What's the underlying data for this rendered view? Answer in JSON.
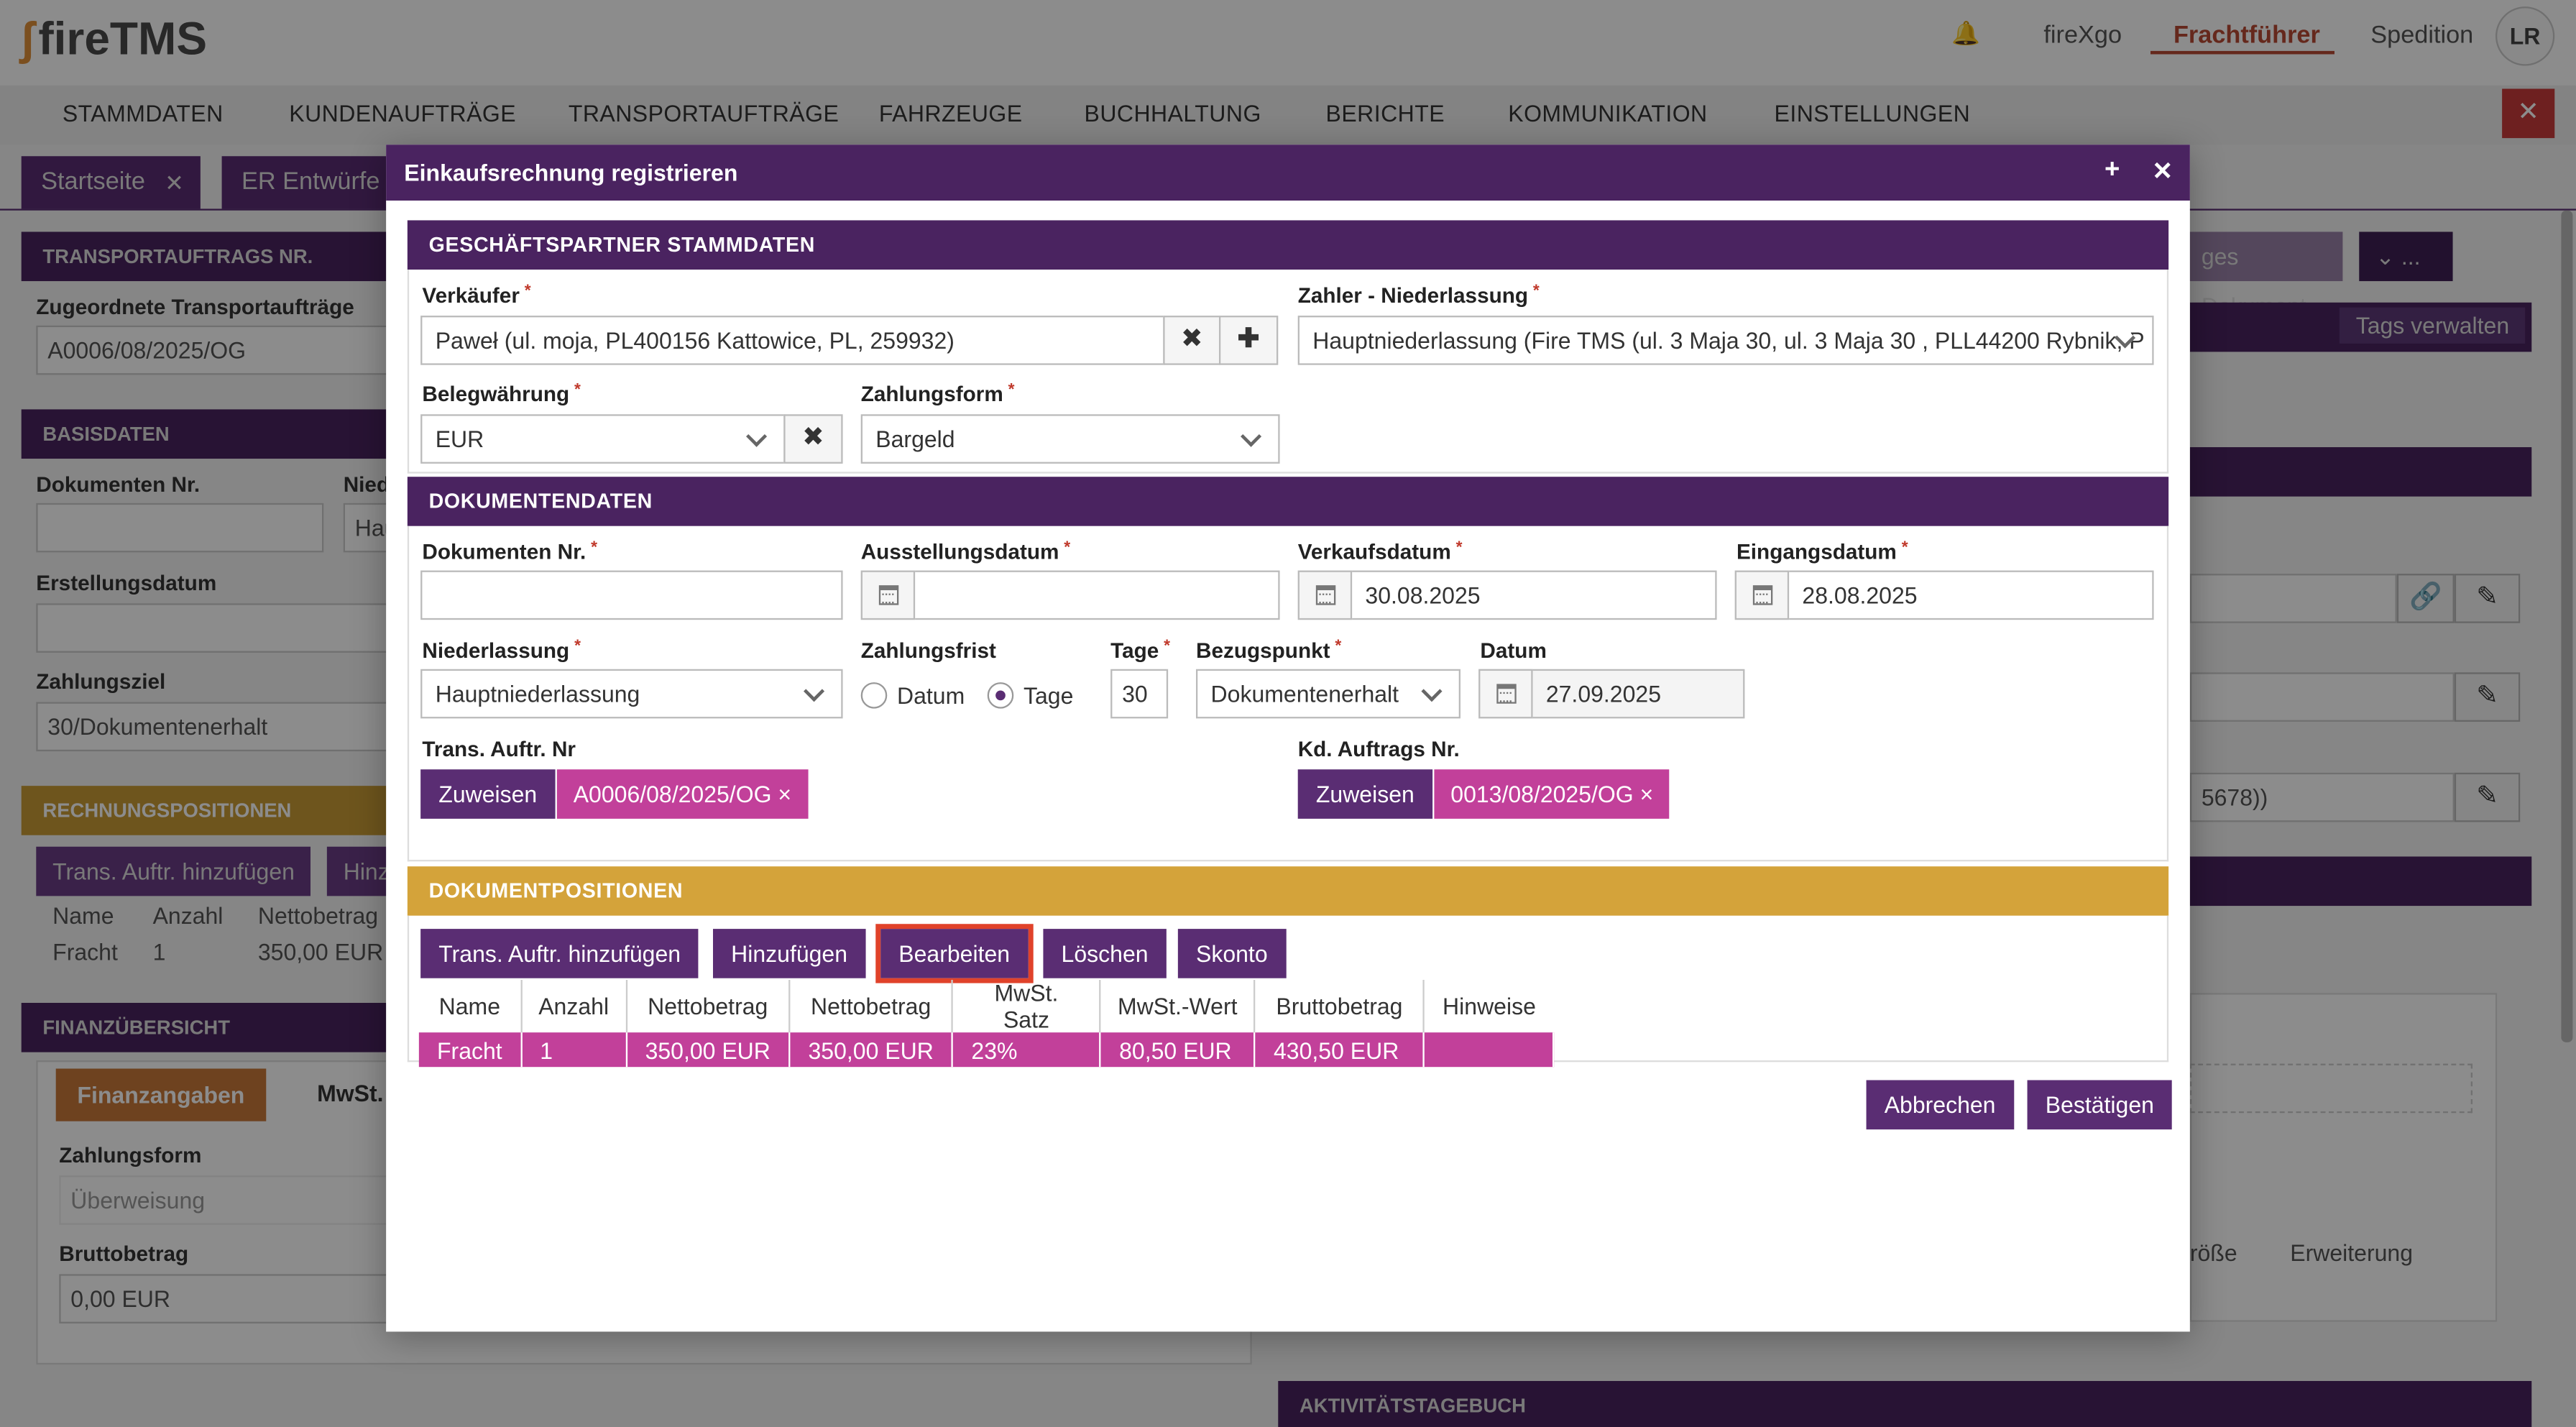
{
  "app": {
    "logo": "fireTMS",
    "top_links": [
      "fireXgo",
      "Frachtführer",
      "Spedition"
    ],
    "user_initials": "LR",
    "nav": [
      "STAMMDATEN",
      "KUNDENAUFTRÄGE",
      "TRANSPORTAUFTRÄGE",
      "FAHRZEUGE",
      "BUCHHALTUNG",
      "BERICHTE",
      "KOMMUNIKATION",
      "EINSTELLUNGEN"
    ],
    "tabs": [
      "Startseite",
      "ER Entwürfe"
    ]
  },
  "background": {
    "transportauftrags_nr": "TRANSPORTAUFTRAGS NR.",
    "zugeordnete_label": "Zugeordnete Transportaufträge",
    "zugeordnete_value": "A0006/08/2025/OG",
    "basisdaten": "BASISDATEN",
    "dokumenten_nr": "Dokumenten Nr.",
    "nied": "Nied",
    "hau": "Hau",
    "erstellungsdatum": "Erstellungsdatum",
    "zahlungsziel": "Zahlungsziel",
    "zahlungsziel_value": "30/Dokumentenerhalt",
    "rechnungspositionen": "RECHNUNGSPOSITIONEN",
    "btn_trans": "Trans. Auftr. hinzufügen",
    "btn_hinz": "Hinz",
    "col_name": "Name",
    "col_anzahl": "Anzahl",
    "col_netto": "Nettobetrag",
    "row_name": "Fracht",
    "row_anzahl": "1",
    "row_netto": "350,00 EUR",
    "finanzuebersicht": "FINANZÜBERSICHT",
    "tab_finanzangaben": "Finanzangaben",
    "tab_mwst": "MwSt.",
    "zahlungsform": "Zahlungsform",
    "zahlungsform_value": "Überweisung",
    "bruttobetrag": "Bruttobetrag",
    "bruttobetrag_value": "0,00 EUR",
    "right_doc_btn": "ges Dokument",
    "right_more": "...",
    "tags_verwalten": "Tags verwalten",
    "right_partial": "5678))",
    "right_groesse": "röße",
    "right_erweiterung": "Erweiterung",
    "aktivitaetstagebuch": "AKTIVITÄTSTAGEBUCH"
  },
  "modal": {
    "title": "Einkaufsrechnung registrieren",
    "plus": "+",
    "close": "✕",
    "sections": {
      "partner": "GESCHÄFTSPARTNER STAMMDATEN",
      "document": "DOKUMENTENDATEN",
      "positions": "DOKUMENTPOSITIONEN"
    },
    "verkaeufer": {
      "label": "Verkäufer",
      "value": "Paweł (ul. moja, PL400156 Kattowice, PL, 259932)"
    },
    "zahler": {
      "label": "Zahler - Niederlassung",
      "value": "Hauptniederlassung (Fire TMS  (ul. 3 Maja 30, ul. 3 Maja 30 , PLL44200 Rybnik, P"
    },
    "belegwaehrung": {
      "label": "Belegwährung",
      "value": "EUR"
    },
    "zahlungsform": {
      "label": "Zahlungsform",
      "value": "Bargeld"
    },
    "dokumenten_nr": {
      "label": "Dokumenten Nr.",
      "value": ""
    },
    "ausstellungsdatum": {
      "label": "Ausstellungsdatum",
      "value": ""
    },
    "verkaufsdatum": {
      "label": "Verkaufsdatum",
      "value": "30.08.2025"
    },
    "eingangsdatum": {
      "label": "Eingangsdatum",
      "value": "28.08.2025"
    },
    "niederlassung": {
      "label": "Niederlassung",
      "value": "Hauptniederlassung"
    },
    "zahlungsfrist": {
      "label": "Zahlungsfrist",
      "option_datum": "Datum",
      "option_tage": "Tage",
      "selected": "Tage"
    },
    "tage": {
      "label": "Tage",
      "value": "30"
    },
    "bezugspunkt": {
      "label": "Bezugspunkt",
      "value": "Dokumentenerhalt"
    },
    "datum": {
      "label": "Datum",
      "value": "27.09.2025"
    },
    "trans_auftr_nr": {
      "label": "Trans. Auftr. Nr",
      "button": "Zuweisen",
      "tag": "A0006/08/2025/OG ×"
    },
    "kd_auftrags_nr": {
      "label": "Kd. Auftrags Nr.",
      "button": "Zuweisen",
      "tag": "0013/08/2025/OG ×"
    },
    "position_buttons": [
      "Trans. Auftr. hinzufügen",
      "Hinzufügen",
      "Bearbeiten",
      "Löschen",
      "Skonto"
    ],
    "table": {
      "columns": [
        "Name",
        "Anzahl",
        "Nettobetrag",
        "Nettobetrag",
        "MwSt. Satz",
        "MwSt.-Wert",
        "Bruttobetrag",
        "Hinweise"
      ],
      "rows": [
        [
          "Fracht",
          "1",
          "350,00 EUR",
          "350,00 EUR",
          "23%",
          "80,50 EUR",
          "430,50 EUR",
          ""
        ]
      ]
    },
    "footer": {
      "cancel": "Abbrechen",
      "confirm": "Bestätigen"
    }
  },
  "colors": {
    "brand_purple": "#4a2360",
    "button_purple": "#5a2d73",
    "tag_pink": "#c2409a",
    "section_gold": "#d4a33a",
    "highlight_red": "#e0422a"
  }
}
